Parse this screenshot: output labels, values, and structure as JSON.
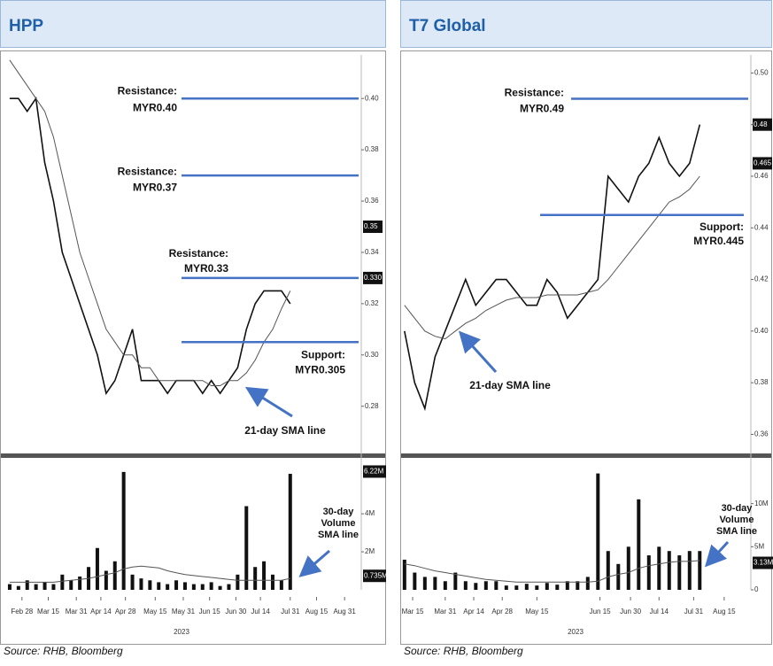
{
  "chart_data": [
    {
      "type": "line",
      "title": "HPP",
      "xlabel": "2023",
      "source": "Source: RHB, Bloomberg",
      "xlim": [
        49,
        251
      ],
      "xticks": [
        {
          "value": 59,
          "label": "Feb 28"
        },
        {
          "value": 74,
          "label": "Mar 15"
        },
        {
          "value": 90,
          "label": "Mar 31"
        },
        {
          "value": 104,
          "label": "Apr 14"
        },
        {
          "value": 118,
          "label": "Apr 28"
        },
        {
          "value": 135,
          "label": "May 15"
        },
        {
          "value": 151,
          "label": "May 31"
        },
        {
          "value": 166,
          "label": "Jun 15"
        },
        {
          "value": 181,
          "label": "Jun 30"
        },
        {
          "value": 195,
          "label": "Jul 14"
        },
        {
          "value": 212,
          "label": "Jul 31"
        },
        {
          "value": 227,
          "label": "Aug 15"
        },
        {
          "value": 243,
          "label": "Aug 31"
        }
      ],
      "ylim": [
        0.264,
        0.417
      ],
      "yticks": [
        0.28,
        {
          "value": 0.3,
          "label": "0.30"
        },
        0.32,
        0.34,
        0.36,
        0.38,
        {
          "value": 0.4,
          "label": "0.40"
        }
      ],
      "price_tags": [
        {
          "value": 0.35,
          "label": "0.35"
        },
        {
          "value": 0.33,
          "label": "0.330"
        }
      ],
      "x": [
        52,
        57,
        62,
        67,
        72,
        77,
        82,
        87,
        92,
        97,
        102,
        107,
        112,
        117,
        122,
        127,
        132,
        137,
        142,
        147,
        152,
        157,
        162,
        167,
        172,
        177,
        182,
        187,
        192,
        197,
        202,
        207,
        212
      ],
      "series": [
        {
          "color": "#111111",
          "values": [
            0.4,
            0.4,
            0.395,
            0.4,
            0.375,
            0.36,
            0.34,
            0.33,
            0.32,
            0.31,
            0.3,
            0.285,
            0.29,
            0.3,
            0.31,
            0.29,
            0.29,
            0.29,
            0.285,
            0.29,
            0.29,
            0.29,
            0.285,
            0.29,
            0.285,
            0.29,
            0.295,
            0.31,
            0.32,
            0.325,
            0.325,
            0.325,
            0.32
          ]
        },
        {
          "color": "#555555",
          "values": [
            0.415,
            0.41,
            0.405,
            0.4,
            0.395,
            0.385,
            0.37,
            0.355,
            0.34,
            0.33,
            0.32,
            0.31,
            0.305,
            0.3,
            0.3,
            0.295,
            0.295,
            0.29,
            0.29,
            0.29,
            0.29,
            0.29,
            0.29,
            0.288,
            0.288,
            0.29,
            0.29,
            0.293,
            0.298,
            0.305,
            0.31,
            0.318,
            0.325
          ]
        }
      ],
      "annotations": [
        {
          "lines": [
            "Resistance:",
            "MYR0.40"
          ],
          "value": 0.4,
          "color": "#4472c4"
        },
        {
          "lines": [
            "Resistance:",
            "MYR0.37"
          ],
          "value": 0.37,
          "color": "#4472c4"
        },
        {
          "lines": [
            "Resistance:",
            "MYR0.33"
          ],
          "value": 0.33,
          "color": "#4472c4"
        },
        {
          "lines": [
            "Support:",
            "MYR0.305"
          ],
          "value": 0.305,
          "color": "#4472c4"
        }
      ],
      "sma_note": [
        "21-day SMA line"
      ],
      "volume": {
        "type": "bar",
        "color": "#111111",
        "sma_color": "#555555",
        "ylim": [
          0,
          6.8
        ],
        "yticks": [
          {
            "value": 2,
            "label": "2M"
          },
          {
            "value": 4,
            "label": "4M"
          }
        ],
        "tags": [
          {
            "value": 6.22,
            "label": "6.22M"
          },
          {
            "value": 0.735,
            "label": "0.735M"
          }
        ],
        "values": [
          0.3,
          0.2,
          0.5,
          0.3,
          0.4,
          0.3,
          0.8,
          0.5,
          0.7,
          1.2,
          2.2,
          1.0,
          1.5,
          6.2,
          0.8,
          0.6,
          0.5,
          0.4,
          0.3,
          0.5,
          0.4,
          0.3,
          0.3,
          0.4,
          0.2,
          0.3,
          0.8,
          4.4,
          1.2,
          1.5,
          0.8,
          0.5,
          6.1
        ],
        "sma": [
          0.4,
          0.4,
          0.4,
          0.4,
          0.4,
          0.4,
          0.45,
          0.5,
          0.55,
          0.6,
          0.7,
          0.8,
          0.9,
          1.1,
          1.2,
          1.25,
          1.2,
          1.15,
          1.0,
          0.9,
          0.8,
          0.75,
          0.7,
          0.65,
          0.6,
          0.55,
          0.5,
          0.5,
          0.5,
          0.5,
          0.5,
          0.5,
          0.6
        ],
        "note": [
          "30-day",
          "Volume",
          "SMA line"
        ]
      }
    },
    {
      "type": "line",
      "title": "T7 Global",
      "xlabel": "2023",
      "source": "Source: RHB, Bloomberg",
      "xlim": [
        69.2,
        238.8
      ],
      "xticks": [
        {
          "value": 74,
          "label": "Mar 15"
        },
        {
          "value": 90,
          "label": "Mar 31"
        },
        {
          "value": 104,
          "label": "Apr 14"
        },
        {
          "value": 118,
          "label": "Apr 28"
        },
        {
          "value": 135,
          "label": "May 15"
        },
        {
          "value": 166,
          "label": "Jun 15"
        },
        {
          "value": 181,
          "label": "Jun 30"
        },
        {
          "value": 195,
          "label": "Jul 14"
        },
        {
          "value": 212,
          "label": "Jul 31"
        },
        {
          "value": 227,
          "label": "Aug 15"
        }
      ],
      "ylim": [
        0.355,
        0.507
      ],
      "yticks": [
        0.36,
        0.38,
        {
          "value": 0.4,
          "label": "0.40"
        },
        0.42,
        0.44,
        0.46,
        0.48,
        {
          "value": 0.5,
          "label": "0.50"
        }
      ],
      "price_tags": [
        {
          "value": 0.48,
          "label": "0.48"
        },
        {
          "value": 0.465,
          "label": "0.465"
        }
      ],
      "x": [
        70,
        75,
        80,
        85,
        90,
        95,
        100,
        105,
        110,
        115,
        120,
        125,
        130,
        135,
        140,
        145,
        150,
        155,
        160,
        165,
        170,
        175,
        180,
        185,
        190,
        195,
        200,
        205,
        210,
        215
      ],
      "series": [
        {
          "color": "#111111",
          "values": [
            0.4,
            0.38,
            0.37,
            0.39,
            0.4,
            0.41,
            0.42,
            0.41,
            0.415,
            0.42,
            0.42,
            0.415,
            0.41,
            0.41,
            0.42,
            0.415,
            0.405,
            0.41,
            0.415,
            0.42,
            0.46,
            0.455,
            0.45,
            0.46,
            0.465,
            0.475,
            0.465,
            0.46,
            0.465,
            0.48
          ]
        },
        {
          "color": "#555555",
          "values": [
            0.41,
            0.405,
            0.4,
            0.398,
            0.397,
            0.4,
            0.403,
            0.405,
            0.408,
            0.41,
            0.412,
            0.413,
            0.413,
            0.413,
            0.414,
            0.414,
            0.414,
            0.414,
            0.415,
            0.416,
            0.42,
            0.425,
            0.43,
            0.435,
            0.44,
            0.445,
            0.45,
            0.452,
            0.455,
            0.46
          ]
        }
      ],
      "annotations": [
        {
          "lines": [
            "Resistance:",
            "MYR0.49"
          ],
          "value": 0.49,
          "color": "#4472c4"
        },
        {
          "lines": [
            "Support:",
            "MYR0.445"
          ],
          "value": 0.445,
          "color": "#4472c4"
        }
      ],
      "sma_note": [
        "21-day SMA line"
      ],
      "volume": {
        "type": "bar",
        "color": "#111111",
        "sma_color": "#555555",
        "ylim": [
          0,
          15
        ],
        "yticks": [
          0,
          {
            "value": 5,
            "label": "5M"
          },
          {
            "value": 10,
            "label": "10M"
          }
        ],
        "tags": [
          {
            "value": 3.13,
            "label": "3.13M"
          }
        ],
        "values": [
          3.5,
          2.0,
          1.5,
          1.5,
          1.0,
          2.0,
          1.0,
          0.8,
          1.0,
          1.0,
          0.5,
          0.5,
          0.7,
          0.5,
          0.8,
          0.6,
          1.0,
          1.0,
          1.5,
          13.5,
          4.5,
          3.0,
          5.0,
          10.5,
          4.0,
          5.0,
          4.5,
          4.0,
          4.5,
          4.5
        ],
        "sma": [
          3.0,
          2.8,
          2.5,
          2.2,
          2.0,
          1.8,
          1.6,
          1.4,
          1.2,
          1.1,
          1.0,
          0.9,
          0.9,
          0.9,
          0.9,
          0.9,
          0.9,
          0.9,
          0.9,
          1.0,
          1.5,
          1.8,
          2.0,
          2.5,
          2.8,
          3.0,
          3.2,
          3.3,
          3.3,
          3.4
        ],
        "note": [
          "30-day",
          "Volume",
          "SMA line"
        ]
      }
    }
  ]
}
